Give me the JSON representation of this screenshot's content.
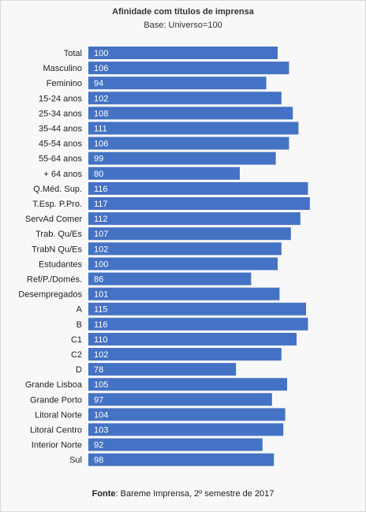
{
  "chart_data": {
    "type": "bar",
    "orientation": "horizontal",
    "title": "Afinidade com títulos de imprensa",
    "subtitle": "Base: Universo=100",
    "categories": [
      "Total",
      "Masculino",
      "Feminino",
      "15-24 anos",
      "25-34 anos",
      "35-44 anos",
      "45-54 anos",
      "55-64 anos",
      "+ 64 anos",
      "Q.Méd. Sup.",
      "T.Esp. P.Pro.",
      "ServAd Comer",
      "Trab. Qu/Es",
      "TrabN Qu/Es",
      "Estudantes",
      "Ref/P./Domés.",
      "Desempregados",
      "A",
      "B",
      "C1",
      "C2",
      "D",
      "Grande Lisboa",
      "Grande Porto",
      "Litoral Norte",
      "Litoral Centro",
      "Interior Norte",
      "Sul"
    ],
    "values": [
      100,
      106,
      94,
      102,
      108,
      111,
      106,
      99,
      80,
      116,
      117,
      112,
      107,
      102,
      100,
      86,
      101,
      115,
      116,
      110,
      102,
      78,
      105,
      97,
      104,
      103,
      92,
      98
    ],
    "bar_color": "#4472c4",
    "grid": false,
    "legend": "none",
    "data_labels": "inside-start"
  },
  "source": {
    "label": "Fonte",
    "text": ": Bareme Imprensa, 2º semestre de 2017"
  }
}
